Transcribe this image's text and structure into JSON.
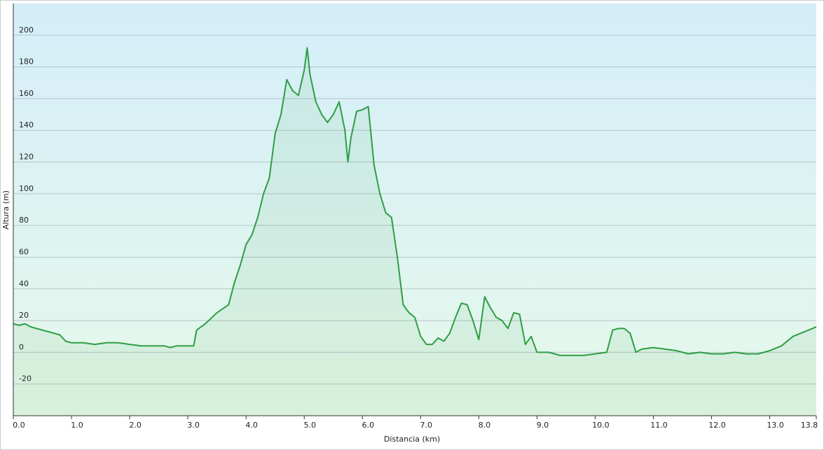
{
  "chart_data": {
    "type": "area",
    "xlabel": "Distancia  (km)",
    "ylabel": "Altura (m)",
    "xlim": [
      0,
      13.8
    ],
    "ylim": [
      -40,
      220
    ],
    "xticks": [
      {
        "value": 0,
        "label": "0.0"
      },
      {
        "value": 1,
        "label": "1.0"
      },
      {
        "value": 2,
        "label": "2.0"
      },
      {
        "value": 3,
        "label": "3.0"
      },
      {
        "value": 4,
        "label": "4.0"
      },
      {
        "value": 5,
        "label": "5.0"
      },
      {
        "value": 6,
        "label": "6.0"
      },
      {
        "value": 7,
        "label": "7.0"
      },
      {
        "value": 8,
        "label": "8.0"
      },
      {
        "value": 9,
        "label": "9.0"
      },
      {
        "value": 10,
        "label": "10.0"
      },
      {
        "value": 11,
        "label": "11.0"
      },
      {
        "value": 12,
        "label": "12.0"
      },
      {
        "value": 13,
        "label": "13.0"
      },
      13.8
    ],
    "yticks": [
      -20,
      0,
      20,
      40,
      60,
      80,
      100,
      120,
      140,
      160,
      180,
      200
    ],
    "grid": true,
    "x": [
      0,
      0.1,
      0.2,
      0.3,
      0.4,
      0.5,
      0.6,
      0.7,
      0.8,
      0.9,
      1.0,
      1.2,
      1.4,
      1.6,
      1.8,
      2.0,
      2.2,
      2.4,
      2.6,
      2.7,
      2.8,
      3.0,
      3.1,
      3.15,
      3.3,
      3.5,
      3.7,
      3.8,
      3.9,
      4.0,
      4.1,
      4.2,
      4.3,
      4.4,
      4.5,
      4.6,
      4.7,
      4.8,
      4.9,
      5.0,
      5.05,
      5.1,
      5.2,
      5.3,
      5.4,
      5.5,
      5.6,
      5.7,
      5.75,
      5.8,
      5.9,
      6.0,
      6.1,
      6.2,
      6.3,
      6.4,
      6.5,
      6.6,
      6.7,
      6.8,
      6.9,
      7.0,
      7.1,
      7.2,
      7.3,
      7.4,
      7.5,
      7.6,
      7.7,
      7.8,
      7.9,
      8.0,
      8.1,
      8.2,
      8.3,
      8.4,
      8.5,
      8.6,
      8.7,
      8.8,
      8.9,
      9.0,
      9.2,
      9.4,
      9.6,
      9.8,
      10.0,
      10.2,
      10.3,
      10.4,
      10.5,
      10.6,
      10.7,
      10.8,
      11.0,
      11.2,
      11.4,
      11.6,
      11.8,
      12.0,
      12.2,
      12.4,
      12.6,
      12.8,
      13.0,
      13.2,
      13.4,
      13.6,
      13.8
    ],
    "series": [
      {
        "color": "#2e9e44",
        "values": [
          18,
          17,
          18,
          16,
          15,
          14,
          13,
          12,
          11,
          7,
          6,
          6,
          5,
          6,
          6,
          5,
          4,
          4,
          4,
          3,
          4,
          4,
          4,
          14,
          18,
          25,
          30,
          44,
          55,
          68,
          74,
          85,
          100,
          110,
          138,
          150,
          172,
          165,
          162,
          178,
          192,
          175,
          158,
          150,
          145,
          150,
          158,
          140,
          120,
          135,
          152,
          153,
          155,
          118,
          100,
          88,
          85,
          60,
          30,
          25,
          22,
          10,
          5,
          5,
          9,
          7,
          12,
          22,
          31,
          30,
          20,
          8,
          35,
          28,
          22,
          20,
          15,
          25,
          24,
          5,
          10,
          0,
          0,
          -2,
          -2,
          -2,
          -1,
          0,
          14,
          15,
          15,
          12,
          0,
          2,
          3,
          2,
          1,
          -1,
          0,
          -1,
          -1,
          0,
          -1,
          -1,
          1,
          4,
          10,
          13,
          16
        ]
      }
    ]
  }
}
